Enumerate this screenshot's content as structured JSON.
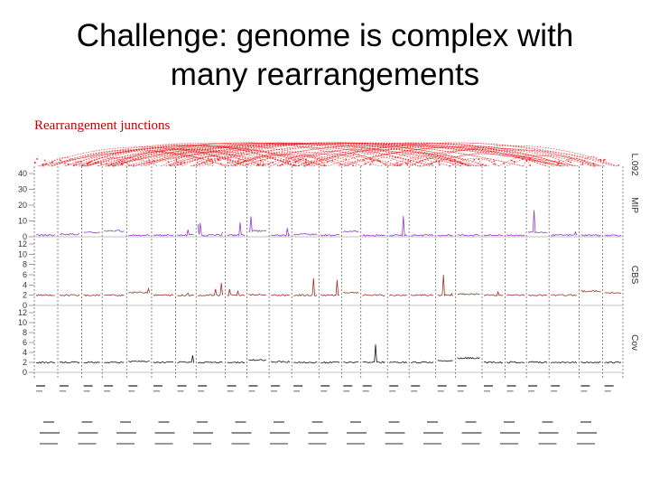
{
  "slide": {
    "title_line1": "Challenge: genome is complex with",
    "title_line2": "many rearrangements",
    "annotation": "Rearrangement junctions"
  },
  "chart_data": {
    "type": "line",
    "colors": {
      "junctions": "#ee2222",
      "MIP": "#9933cc",
      "CBS": "#993322",
      "Cov": "#111111"
    },
    "panels": [
      {
        "name": "L.092",
        "kind": "arcs"
      },
      {
        "name": "MIP",
        "yticks": [
          40,
          30,
          20,
          10,
          0
        ],
        "ylim": [
          0,
          40
        ],
        "baseline": 1,
        "series_color_key": "MIP"
      },
      {
        "name": "CBS",
        "yticks": [
          12,
          10,
          8,
          6,
          4,
          2,
          0
        ],
        "ylim": [
          0,
          12
        ],
        "baseline": 2,
        "series_color_key": "CBS"
      },
      {
        "name": "Cov",
        "yticks": [
          12,
          10,
          8,
          6,
          4,
          2,
          0
        ],
        "ylim": [
          0,
          12
        ],
        "baseline": 2,
        "series_color_key": "Cov"
      }
    ],
    "segments": 25,
    "grid": "vertical dashed segment boundaries"
  }
}
